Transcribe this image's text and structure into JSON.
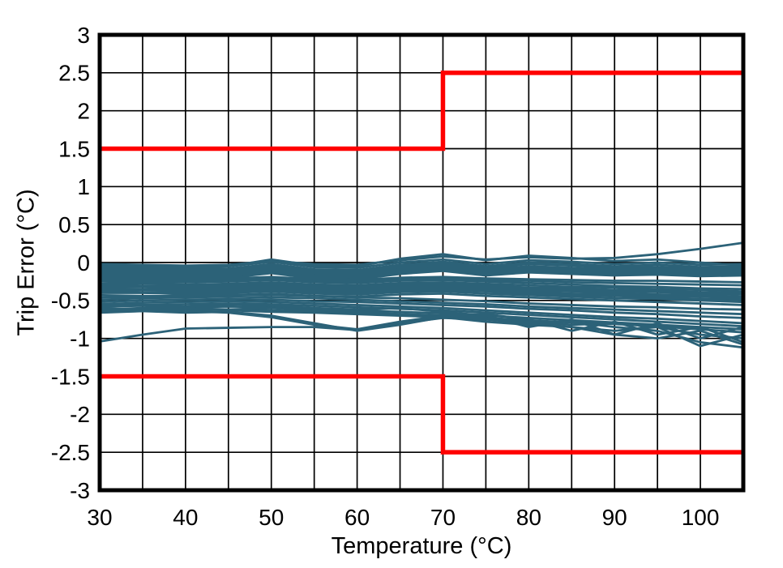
{
  "chart_data": {
    "type": "line",
    "title": "",
    "xlabel": "Temperature (°C)",
    "ylabel": "Trip Error (°C)",
    "xlim": [
      30,
      105
    ],
    "ylim": [
      -3,
      3
    ],
    "x_ticks": [
      30,
      40,
      50,
      60,
      70,
      80,
      90,
      100
    ],
    "y_ticks": [
      3,
      2.5,
      2,
      1.5,
      1,
      0.5,
      0,
      -0.5,
      -1,
      -1.5,
      -2,
      -2.5,
      -3
    ],
    "x_grid_step": 5,
    "y_grid_step": 0.5,
    "grid": true,
    "legend": "none",
    "colors": {
      "limit_line": "#ff0000",
      "trace": "#2c6278",
      "grid": "#000000",
      "border": "#000000",
      "background": "#ffffff"
    },
    "upper_limit": [
      [
        30,
        1.5
      ],
      [
        70,
        1.5
      ],
      [
        70,
        2.5
      ],
      [
        105,
        2.5
      ]
    ],
    "lower_limit": [
      [
        30,
        -1.5
      ],
      [
        70,
        -1.5
      ],
      [
        70,
        -2.5
      ],
      [
        105,
        -2.5
      ]
    ],
    "x": [
      30,
      35,
      40,
      45,
      50,
      55,
      60,
      65,
      70,
      75,
      80,
      85,
      90,
      95,
      100,
      105
    ],
    "series": [
      [
        -0.04,
        -0.05,
        -0.06,
        -0.05,
        0.01,
        -0.06,
        -0.07,
        0.0,
        0.04,
        -0.02,
        0.03,
        0.01,
        -0.02,
        0.0,
        -0.03,
        -0.02
      ],
      [
        -0.07,
        -0.08,
        -0.09,
        -0.08,
        -0.02,
        -0.09,
        -0.1,
        -0.03,
        0.01,
        -0.05,
        0.0,
        -0.02,
        -0.05,
        -0.03,
        -0.06,
        -0.05
      ],
      [
        -0.09,
        -0.1,
        -0.11,
        -0.1,
        -0.04,
        -0.11,
        -0.12,
        -0.05,
        -0.01,
        -0.07,
        -0.02,
        -0.04,
        -0.07,
        -0.06,
        -0.08,
        -0.07
      ],
      [
        -0.11,
        -0.12,
        -0.13,
        -0.12,
        -0.06,
        -0.13,
        -0.14,
        -0.07,
        -0.03,
        -0.09,
        -0.05,
        -0.07,
        -0.09,
        -0.08,
        -0.1,
        -0.09
      ],
      [
        -0.13,
        -0.14,
        -0.15,
        -0.14,
        -0.08,
        -0.15,
        -0.16,
        -0.09,
        -0.05,
        -0.11,
        -0.07,
        -0.09,
        -0.11,
        -0.1,
        -0.12,
        -0.11
      ],
      [
        -0.15,
        -0.16,
        -0.17,
        -0.16,
        -0.1,
        -0.17,
        -0.18,
        -0.11,
        -0.07,
        -0.13,
        -0.09,
        -0.11,
        -0.13,
        -0.12,
        -0.14,
        -0.13
      ],
      [
        -0.17,
        -0.18,
        -0.19,
        -0.18,
        -0.12,
        -0.19,
        -0.2,
        -0.13,
        -0.09,
        -0.15,
        -0.11,
        -0.13,
        -0.15,
        -0.14,
        -0.16,
        -0.15
      ],
      [
        -0.19,
        -0.2,
        -0.21,
        -0.2,
        -0.14,
        -0.21,
        -0.22,
        -0.15,
        -0.11,
        -0.17,
        -0.13,
        -0.15,
        -0.17,
        -0.16,
        -0.18,
        -0.17
      ],
      [
        -0.21,
        -0.22,
        -0.22,
        -0.21,
        -0.19,
        -0.22,
        -0.23,
        -0.2,
        -0.19,
        -0.21,
        -0.22,
        -0.23,
        -0.24,
        -0.24,
        -0.25,
        -0.26
      ],
      [
        -0.23,
        -0.23,
        -0.24,
        -0.23,
        -0.21,
        -0.24,
        -0.25,
        -0.22,
        -0.21,
        -0.23,
        -0.24,
        -0.26,
        -0.27,
        -0.28,
        -0.29,
        -0.3
      ],
      [
        -0.25,
        -0.26,
        -0.26,
        -0.25,
        -0.23,
        -0.26,
        -0.27,
        -0.24,
        -0.23,
        -0.25,
        -0.27,
        -0.29,
        -0.31,
        -0.32,
        -0.34,
        -0.35
      ],
      [
        -0.28,
        -0.28,
        -0.29,
        -0.28,
        -0.26,
        -0.29,
        -0.3,
        -0.27,
        -0.26,
        -0.28,
        -0.3,
        -0.32,
        -0.33,
        -0.35,
        -0.36,
        -0.38
      ],
      [
        -0.3,
        -0.31,
        -0.31,
        -0.3,
        -0.28,
        -0.31,
        -0.32,
        -0.29,
        -0.28,
        -0.3,
        -0.33,
        -0.34,
        -0.36,
        -0.37,
        -0.39,
        -0.4
      ],
      [
        -0.32,
        -0.32,
        -0.33,
        -0.32,
        -0.3,
        -0.33,
        -0.34,
        -0.31,
        -0.3,
        -0.32,
        -0.35,
        -0.36,
        -0.38,
        -0.39,
        -0.41,
        -0.42
      ],
      [
        -0.34,
        -0.35,
        -0.35,
        -0.34,
        -0.32,
        -0.35,
        -0.36,
        -0.33,
        -0.32,
        -0.34,
        -0.37,
        -0.38,
        -0.4,
        -0.42,
        -0.43,
        -0.45
      ],
      [
        -0.36,
        -0.36,
        -0.37,
        -0.36,
        -0.34,
        -0.37,
        -0.38,
        -0.35,
        -0.34,
        -0.36,
        -0.39,
        -0.41,
        -0.42,
        -0.44,
        -0.45,
        -0.47
      ],
      [
        -0.38,
        -0.39,
        -0.39,
        -0.38,
        -0.36,
        -0.39,
        -0.4,
        -0.37,
        -0.36,
        -0.38,
        -0.41,
        -0.43,
        -0.44,
        -0.46,
        -0.48,
        -0.49
      ],
      [
        -0.4,
        -0.4,
        -0.41,
        -0.4,
        -0.38,
        -0.41,
        -0.42,
        -0.39,
        -0.38,
        -0.41,
        -0.43,
        -0.45,
        -0.47,
        -0.48,
        -0.5,
        -0.52
      ],
      [
        -0.43,
        -0.44,
        -0.44,
        -0.43,
        -0.41,
        -0.44,
        -0.45,
        -0.42,
        -0.41,
        -0.44,
        -0.46,
        -0.48,
        -0.5,
        -0.52,
        -0.54,
        -0.56
      ],
      [
        -0.46,
        -0.45,
        -0.43,
        -0.42,
        -0.43,
        -0.44,
        -0.46,
        -0.47,
        -0.49,
        -0.51,
        -0.54,
        -0.56,
        -0.58,
        -0.59,
        -0.61,
        -0.62
      ],
      [
        -0.49,
        -0.47,
        -0.46,
        -0.45,
        -0.46,
        -0.47,
        -0.49,
        -0.51,
        -0.53,
        -0.55,
        -0.58,
        -0.6,
        -0.62,
        -0.64,
        -0.66,
        -0.68
      ],
      [
        -0.52,
        -0.5,
        -0.49,
        -0.48,
        -0.49,
        -0.51,
        -0.52,
        -0.54,
        -0.56,
        -0.58,
        -0.61,
        -0.63,
        -0.66,
        -0.68,
        -0.71,
        -0.73
      ],
      [
        -0.55,
        -0.53,
        -0.52,
        -0.51,
        -0.52,
        -0.54,
        -0.56,
        -0.58,
        -0.6,
        -0.63,
        -0.66,
        -0.69,
        -0.72,
        -0.74,
        -0.77,
        -0.8
      ],
      [
        -0.58,
        -0.56,
        -0.55,
        -0.54,
        -0.55,
        -0.57,
        -0.59,
        -0.61,
        -0.63,
        -0.66,
        -0.69,
        -0.72,
        -0.75,
        -0.78,
        -0.81,
        -0.84
      ],
      [
        -0.62,
        -0.6,
        -0.59,
        -0.58,
        -0.59,
        -0.61,
        -0.63,
        -0.65,
        -0.67,
        -0.7,
        -0.73,
        -0.76,
        -0.79,
        -0.82,
        -0.85,
        -0.88
      ],
      [
        -0.66,
        -0.64,
        -0.63,
        -0.62,
        -0.63,
        -0.65,
        -0.67,
        -0.68,
        -0.7,
        -0.73,
        -0.76,
        -0.79,
        -0.81,
        -0.84,
        -0.88,
        -0.92
      ],
      [
        -0.02,
        -0.03,
        -0.04,
        -0.03,
        0.02,
        -0.02,
        -0.03,
        0.03,
        0.08,
        0.04,
        0.07,
        0.05,
        0.06,
        0.11,
        0.18,
        0.26
      ],
      [
        -0.05,
        -0.06,
        -0.07,
        -0.05,
        0.04,
        -0.04,
        -0.05,
        0.05,
        0.11,
        0.03,
        0.09,
        0.06,
        0.02,
        0.04,
        0.0,
        -0.04
      ],
      [
        -1.04,
        -0.95,
        -0.87,
        -0.86,
        -0.85,
        -0.85,
        -0.89,
        -0.8,
        -0.73,
        -0.75,
        -0.8,
        -0.85,
        -0.9,
        -0.85,
        -0.95,
        -1.0
      ],
      [
        -0.65,
        -0.64,
        -0.66,
        -0.65,
        -0.7,
        -0.8,
        -0.9,
        -0.82,
        -0.72,
        -0.75,
        -0.78,
        -0.82,
        -0.8,
        -0.85,
        -1.1,
        -0.95
      ],
      [
        -0.62,
        -0.63,
        -0.64,
        -0.66,
        -0.72,
        -0.82,
        -0.88,
        -0.78,
        -0.7,
        -0.72,
        -0.8,
        -0.78,
        -0.85,
        -0.9,
        -1.05,
        -1.12
      ],
      [
        -0.55,
        -0.56,
        -0.58,
        -0.55,
        -0.57,
        -0.6,
        -0.62,
        -0.6,
        -0.65,
        -0.7,
        -0.85,
        -0.75,
        -0.95,
        -0.8,
        -1.0,
        -0.85
      ],
      [
        -0.58,
        -0.57,
        -0.6,
        -0.62,
        -0.6,
        -0.63,
        -0.65,
        -0.68,
        -0.7,
        -0.68,
        -0.75,
        -0.9,
        -0.78,
        -0.95,
        -0.85,
        -1.05
      ],
      [
        -0.6,
        -0.62,
        -0.61,
        -0.63,
        -0.65,
        -0.66,
        -0.68,
        -0.7,
        -0.72,
        -0.78,
        -0.82,
        -0.85,
        -0.95,
        -1.0,
        -0.9,
        -1.08
      ]
    ]
  }
}
